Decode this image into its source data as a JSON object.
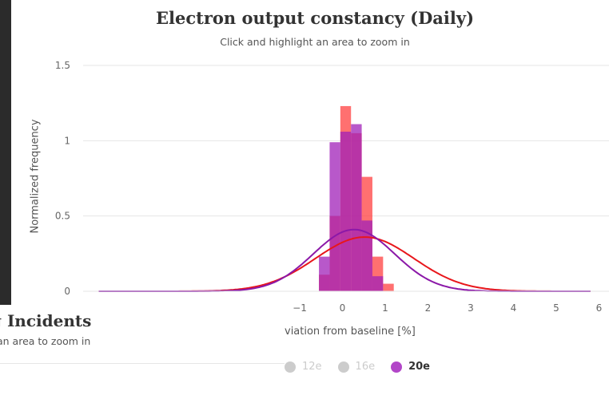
{
  "chart_data": {
    "type": "bar",
    "title": "Electron output constancy (Daily)",
    "subtitle": "Click and highlight an area to zoom in",
    "ylabel": "Normalized frequency",
    "xlabel_visible": "viation from baseline [%]",
    "xlim": [
      -6,
      6.2
    ],
    "ylim": [
      0,
      1.5
    ],
    "x_ticks": [
      "−1",
      "0",
      "1",
      "2",
      "3",
      "4",
      "5",
      "6"
    ],
    "x_tick_values": [
      -1,
      0,
      1,
      2,
      3,
      4,
      5,
      6
    ],
    "y_ticks": [
      "0",
      "0.5",
      "1",
      "1.5"
    ],
    "y_tick_values": [
      0,
      0.5,
      1,
      1.5
    ],
    "grid": true,
    "legend_position": "bottom-right",
    "series": [
      {
        "name": "12e",
        "visible": false,
        "legend_color": "#cccccc"
      },
      {
        "name": "16e",
        "visible": false,
        "legend_color": "#cccccc"
      },
      {
        "name": "20e",
        "visible": true,
        "legend_color": "#b246c8"
      }
    ],
    "histograms": [
      {
        "color": "#ff4040",
        "bins": [
          {
            "x0": -0.55,
            "x1": -0.3,
            "y": 0.11
          },
          {
            "x0": -0.3,
            "x1": -0.05,
            "y": 0.5
          },
          {
            "x0": -0.05,
            "x1": 0.2,
            "y": 1.23
          },
          {
            "x0": 0.2,
            "x1": 0.45,
            "y": 1.05
          },
          {
            "x0": 0.45,
            "x1": 0.7,
            "y": 0.76
          },
          {
            "x0": 0.7,
            "x1": 0.95,
            "y": 0.23
          },
          {
            "x0": 0.95,
            "x1": 1.2,
            "y": 0.05
          }
        ]
      },
      {
        "color": "#a020b8",
        "bins": [
          {
            "x0": -0.55,
            "x1": -0.3,
            "y": 0.23
          },
          {
            "x0": -0.3,
            "x1": -0.05,
            "y": 0.99
          },
          {
            "x0": -0.05,
            "x1": 0.2,
            "y": 1.06
          },
          {
            "x0": 0.2,
            "x1": 0.45,
            "y": 1.11
          },
          {
            "x0": 0.45,
            "x1": 0.7,
            "y": 0.47
          },
          {
            "x0": 0.7,
            "x1": 0.95,
            "y": 0.1
          }
        ]
      }
    ],
    "curves": [
      {
        "color": "#e8161b",
        "mean": 0.52,
        "sd": 1.15,
        "peak": 0.36
      },
      {
        "color": "#8b18a8",
        "mean": 0.27,
        "sd": 0.95,
        "peak": 0.41
      }
    ]
  },
  "behind_panel": {
    "title": "g Incidents",
    "subtitle": "an area to zoom in"
  }
}
